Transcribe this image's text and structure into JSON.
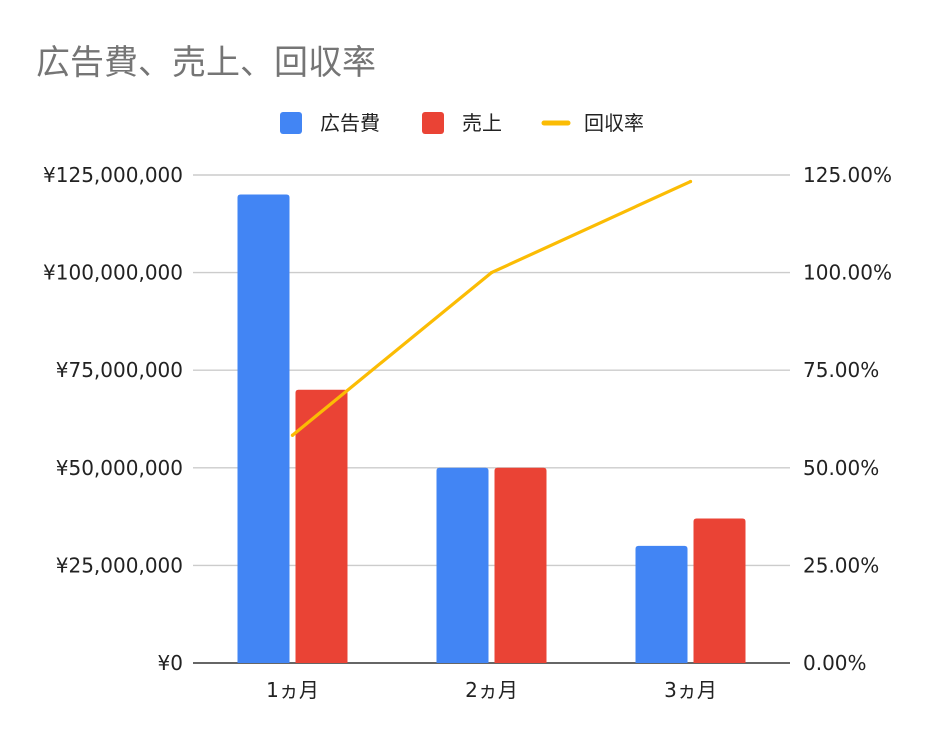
{
  "chart_data": {
    "type": "bar",
    "title": "広告費、売上、回収率",
    "categories": [
      "1ヵ月",
      "2ヵ月",
      "3ヵ月"
    ],
    "series": [
      {
        "name": "広告費",
        "type": "bar",
        "axis": "left",
        "color": "#4285F4",
        "values": [
          120000000,
          50000000,
          30000000
        ]
      },
      {
        "name": "売上",
        "type": "bar",
        "axis": "left",
        "color": "#EA4335",
        "values": [
          70000000,
          50000000,
          37000000
        ]
      },
      {
        "name": "回収率",
        "type": "line",
        "axis": "right",
        "color": "#FBBC04",
        "values": [
          58.33,
          100.0,
          123.33
        ]
      }
    ],
    "y_left": {
      "ylim": [
        0,
        125000000
      ],
      "ticks": [
        0,
        25000000,
        50000000,
        75000000,
        100000000,
        125000000
      ],
      "tick_labels": [
        "¥0",
        "¥25,000,000",
        "¥50,000,000",
        "¥75,000,000",
        "¥100,000,000",
        "¥125,000,000"
      ]
    },
    "y_right": {
      "ylim": [
        0,
        125
      ],
      "ticks": [
        0,
        25,
        50,
        75,
        100,
        125
      ],
      "tick_labels": [
        "0.00%",
        "25.00%",
        "50.00%",
        "75.00%",
        "100.00%",
        "125.00%"
      ]
    },
    "xlabel": "",
    "ylabel": "",
    "grid": true,
    "legend_position": "top"
  }
}
